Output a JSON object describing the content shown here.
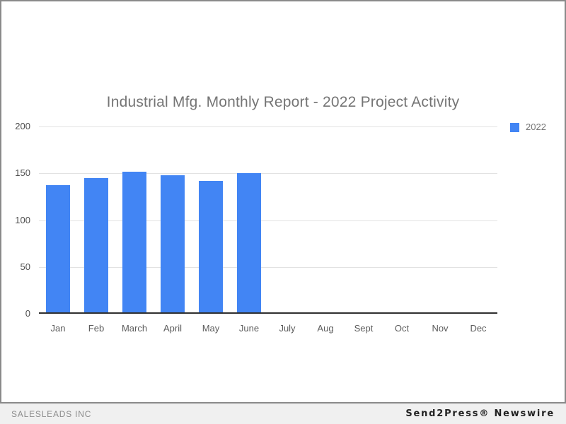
{
  "chart_data": {
    "type": "bar",
    "title": "Industrial Mfg. Monthly Report - 2022 Project Activity",
    "categories": [
      "Jan",
      "Feb",
      "March",
      "April",
      "May",
      "June",
      "July",
      "Aug",
      "Sept",
      "Oct",
      "Nov",
      "Dec"
    ],
    "series": [
      {
        "name": "2022",
        "color": "#4285F4",
        "values": [
          137,
          145,
          152,
          148,
          142,
          150,
          null,
          null,
          null,
          null,
          null,
          null
        ]
      }
    ],
    "xlabel": "",
    "ylabel": "",
    "ylim": [
      0,
      200
    ],
    "yticks": [
      0,
      50,
      100,
      150,
      200
    ],
    "grid": true,
    "legend_position": "top-right"
  },
  "colors": {
    "bar": "#4285F4",
    "gridline": "#e2e2e2",
    "axis_line": "#2f2f2f",
    "title_text": "#757575",
    "card_border": "#8a8a8a",
    "footer_bg": "#f0f0f0"
  },
  "footer": {
    "left": "SALESLEADS INC",
    "right": "Send2Press® Newswire"
  }
}
